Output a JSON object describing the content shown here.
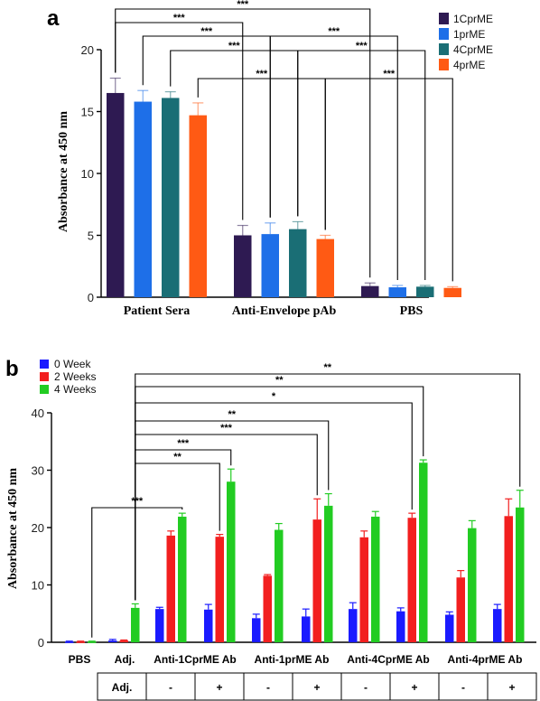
{
  "chart_data": [
    {
      "panel": "a",
      "type": "bar",
      "ylabel": "Absorbance at 450 nm",
      "ylim": [
        0,
        20
      ],
      "yticks": [
        "0",
        "5",
        "10",
        "15",
        "20"
      ],
      "categories": [
        "Patient Sera",
        "Anti-Envelope pAb",
        "PBS"
      ],
      "legend_position": "top-right",
      "series": [
        {
          "name": "1CprME",
          "color": "#2e1a52",
          "values": [
            16.5,
            5.0,
            0.9
          ],
          "errors": [
            1.2,
            0.8,
            0.25
          ]
        },
        {
          "name": "1prME",
          "color": "#1e6fe8",
          "values": [
            15.8,
            5.1,
            0.8
          ],
          "errors": [
            0.9,
            0.9,
            0.15
          ]
        },
        {
          "name": "4CprME",
          "color": "#1a6e75",
          "values": [
            16.1,
            5.5,
            0.85
          ],
          "errors": [
            0.5,
            0.6,
            0.1
          ]
        },
        {
          "name": "4prME",
          "color": "#ff5a14",
          "values": [
            14.7,
            4.7,
            0.75
          ],
          "errors": [
            1.0,
            0.3,
            0.1
          ]
        }
      ],
      "significance": [
        {
          "label": "***"
        },
        {
          "label": "***"
        },
        {
          "label": "***"
        },
        {
          "label": "***"
        },
        {
          "label": "***"
        },
        {
          "label": "***"
        },
        {
          "label": "***"
        },
        {
          "label": "***"
        }
      ]
    },
    {
      "panel": "b",
      "type": "bar",
      "ylabel": "Absorbance at 450 nm",
      "ylim": [
        0,
        40
      ],
      "yticks": [
        "0",
        "10",
        "20",
        "30",
        "40"
      ],
      "categories": [
        "PBS",
        "Adj.",
        "Anti-1CprME Ab -",
        "Anti-1CprME Ab +",
        "Anti-1prME Ab -",
        "Anti-1prME Ab +",
        "Anti-4CprME Ab -",
        "Anti-4CprME Ab +",
        "Anti-4prME Ab -",
        "Anti-4prME Ab +"
      ],
      "category_labels": [
        "PBS",
        "Adj.",
        "Anti-1CprME Ab",
        "Anti-1prME Ab",
        "Anti-4CprME Ab",
        "Anti-4prME Ab"
      ],
      "legend_position": "top-left",
      "series": [
        {
          "name": "0 Week",
          "color": "#1a1aff",
          "values": [
            0.1,
            0.3,
            5.8,
            5.7,
            4.2,
            4.5,
            5.8,
            5.4,
            4.8,
            5.8
          ],
          "errors": [
            0.1,
            0.2,
            0.3,
            0.9,
            0.7,
            1.3,
            1.1,
            0.6,
            0.5,
            0.8
          ]
        },
        {
          "name": "2 Weeks",
          "color": "#f21f1f",
          "values": [
            0.1,
            0.3,
            18.6,
            18.4,
            11.6,
            21.4,
            18.3,
            21.7,
            11.3,
            22.0
          ],
          "errors": [
            0.1,
            0.1,
            0.8,
            0.4,
            0.2,
            3.6,
            1.1,
            0.8,
            1.2,
            3.0
          ]
        },
        {
          "name": "4 Weeks",
          "color": "#22cc22",
          "values": [
            0.1,
            6.0,
            21.9,
            28.0,
            19.6,
            23.8,
            21.9,
            31.3,
            19.9,
            23.5
          ],
          "errors": [
            0.1,
            0.7,
            0.6,
            2.2,
            1.1,
            2.1,
            0.9,
            0.5,
            1.3,
            3.0
          ]
        }
      ],
      "adjuvant_table": {
        "label": "Adj.",
        "values": [
          "-",
          "+",
          "-",
          "+",
          "-",
          "+",
          "-",
          "+"
        ]
      },
      "significance": [
        {
          "label": "**"
        },
        {
          "label": "**"
        },
        {
          "label": "*"
        },
        {
          "label": "**"
        },
        {
          "label": "***"
        },
        {
          "label": "***"
        },
        {
          "label": "**"
        },
        {
          "label": "***"
        }
      ]
    }
  ]
}
